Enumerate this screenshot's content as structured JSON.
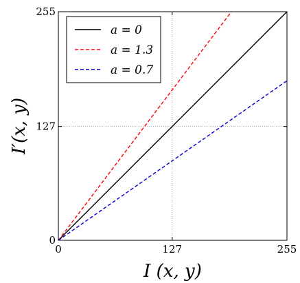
{
  "chart_data": {
    "type": "line",
    "title": "",
    "xlabel": "I (x, y)",
    "ylabel": "I′(x, y)",
    "xlim": [
      0,
      255
    ],
    "ylim": [
      0,
      255
    ],
    "x_ticks": [
      0,
      127,
      255
    ],
    "y_ticks": [
      0,
      127,
      255
    ],
    "x_tick_labels": [
      "0",
      "127",
      "255"
    ],
    "y_tick_labels": [
      "0",
      "127",
      "255"
    ],
    "grid": true,
    "grid_style": "dotted",
    "legend_position": "top-left",
    "series": [
      {
        "name": "a = 0",
        "color": "#000000",
        "dash": "solid",
        "x": [
          0,
          255
        ],
        "y": [
          0,
          255
        ]
      },
      {
        "name": "a = 1.3",
        "color": "#ff0000",
        "dash": "dashed",
        "x": [
          0,
          193
        ],
        "y": [
          0,
          255
        ]
      },
      {
        "name": "a = 0.7",
        "color": "#0000cc",
        "dash": "dashed",
        "x": [
          0,
          255
        ],
        "y": [
          0,
          178
        ]
      }
    ]
  }
}
